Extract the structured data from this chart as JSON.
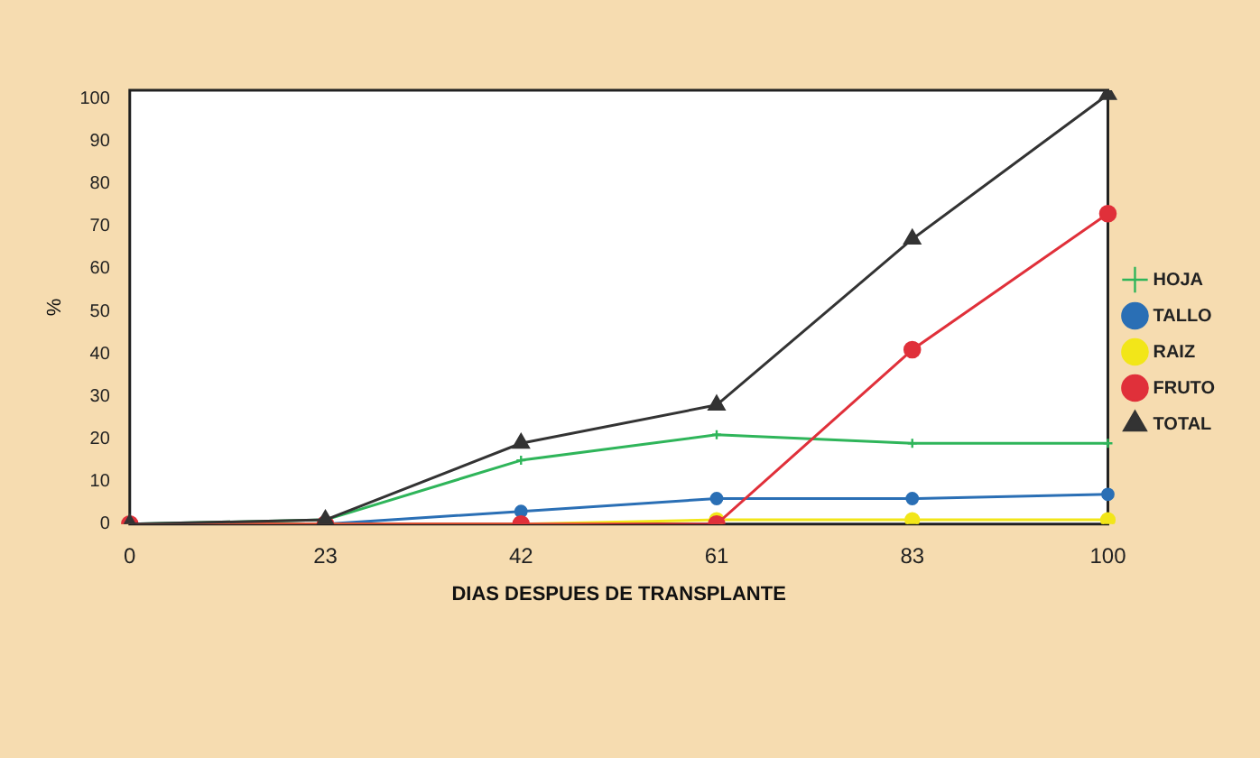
{
  "chart_data": {
    "type": "line",
    "xlabel": "DIAS DESPUES DE TRANSPLANTE",
    "ylabel": "%",
    "categories": [
      "0",
      "23",
      "42",
      "61",
      "83",
      "100"
    ],
    "ylim": [
      0,
      102
    ],
    "yticks": [
      0,
      10,
      20,
      30,
      40,
      50,
      60,
      70,
      80,
      90,
      100
    ],
    "grid": false,
    "legend": "right",
    "series": [
      {
        "name": "HOJA",
        "color": "#2fb55a",
        "marker": "cross",
        "values": [
          0,
          1,
          15,
          21,
          19,
          19
        ]
      },
      {
        "name": "TALLO",
        "color": "#2a6fb5",
        "marker": "circle",
        "values": [
          0,
          0,
          3,
          6,
          6,
          7
        ]
      },
      {
        "name": "RAIZ",
        "color": "#f2e619",
        "marker": "circle",
        "values": [
          0,
          0,
          0,
          1,
          1,
          1
        ]
      },
      {
        "name": "FRUTO",
        "color": "#e0303a",
        "marker": "circle",
        "values": [
          0,
          0,
          0,
          0,
          41,
          73
        ]
      },
      {
        "name": "TOTAL",
        "color": "#333333",
        "marker": "triangle",
        "values": [
          0,
          1,
          19,
          28,
          67,
          101
        ]
      }
    ]
  }
}
